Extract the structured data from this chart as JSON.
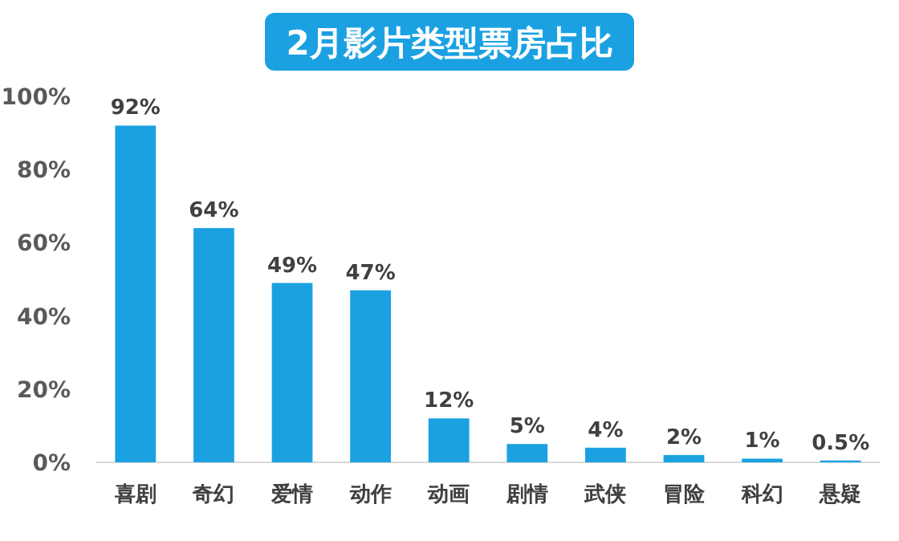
{
  "chart_data": {
    "type": "bar",
    "title": "2月影片类型票房占比",
    "categories": [
      "喜剧",
      "奇幻",
      "爱情",
      "动作",
      "动画",
      "剧情",
      "武侠",
      "冒险",
      "科幻",
      "悬疑"
    ],
    "values": [
      92,
      64,
      49,
      47,
      12,
      5,
      4,
      2,
      1,
      0.5
    ],
    "value_labels": [
      "92%",
      "64%",
      "49%",
      "47%",
      "12%",
      "5%",
      "4%",
      "2%",
      "1%",
      "0.5%"
    ],
    "color": "#1ba1e2",
    "ylim": [
      0,
      100
    ],
    "yticks": [
      {
        "value": 0,
        "label": "0%"
      },
      {
        "value": 20,
        "label": "20%"
      },
      {
        "value": 40,
        "label": "40%"
      },
      {
        "value": 60,
        "label": "60%"
      },
      {
        "value": 80,
        "label": "80%"
      },
      {
        "value": 100,
        "label": "100%"
      }
    ],
    "grid": false
  }
}
